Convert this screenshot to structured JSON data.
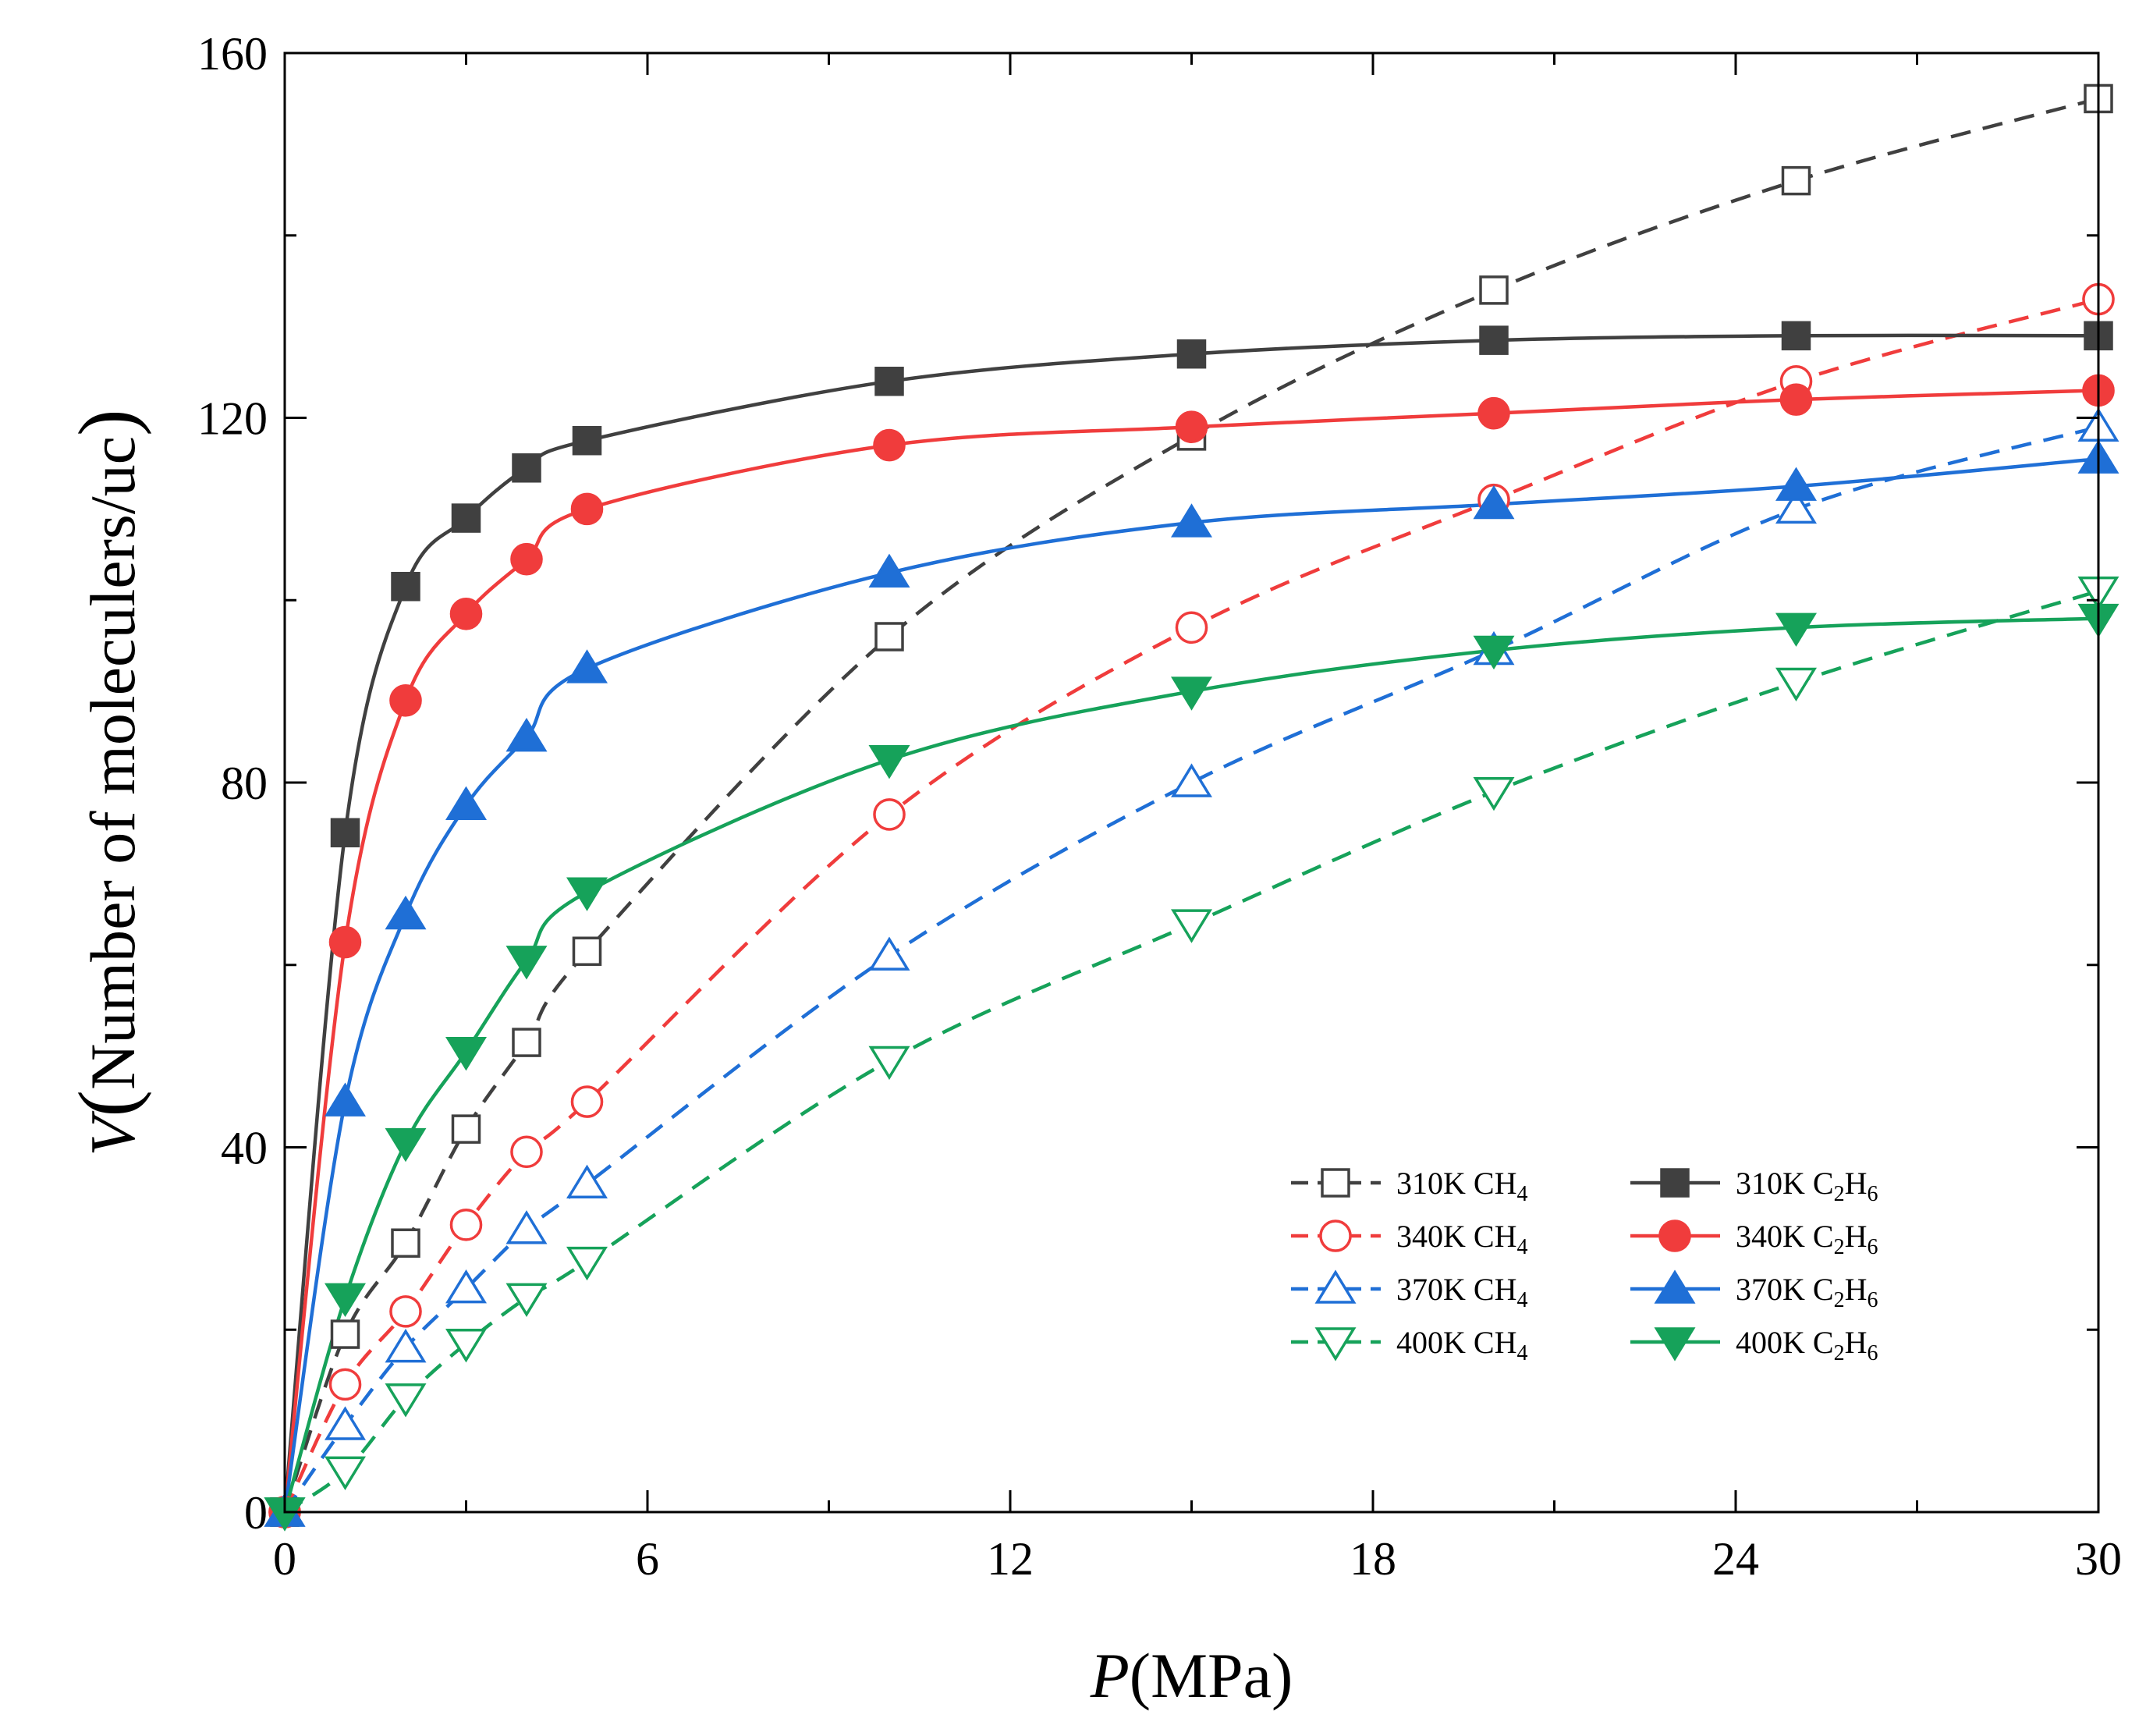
{
  "chart_data": {
    "type": "line",
    "title": "",
    "xlabel_italic": "P",
    "xlabel_rest": "(MPa)",
    "ylabel_italic": "V",
    "ylabel_paren": "(",
    "ylabel_rest": "Number of moleculers/uc",
    "ylabel_close": ")",
    "xlim": [
      0,
      30
    ],
    "ylim": [
      0,
      160
    ],
    "xticks": [
      0,
      6,
      12,
      18,
      24,
      30
    ],
    "yticks": [
      0,
      40,
      80,
      120,
      160
    ],
    "xtick_labels": [
      "0",
      "6",
      "12",
      "18",
      "24",
      "30"
    ],
    "ytick_labels": [
      "0",
      "40",
      "80",
      "120",
      "160"
    ],
    "x": [
      0,
      1,
      2,
      3,
      4,
      5,
      10,
      15,
      20,
      25,
      30
    ],
    "legend_position": "lower-right",
    "series": [
      {
        "name": "310K CH4",
        "label": "310K CH",
        "sub": "4",
        "color": "#404040",
        "marker": "square",
        "filled": false,
        "dashed": true,
        "values": [
          0,
          19.5,
          29.5,
          42,
          51.5,
          61.5,
          96,
          118,
          134,
          146,
          155
        ]
      },
      {
        "name": "340K CH4",
        "label": "340K CH",
        "sub": "4",
        "color": "#f03c3c",
        "marker": "circle",
        "filled": false,
        "dashed": true,
        "values": [
          0,
          14,
          22,
          31.5,
          39.5,
          45,
          76.5,
          97,
          111,
          124,
          133
        ]
      },
      {
        "name": "370K CH4",
        "label": "370K CH",
        "sub": "4",
        "color": "#1f6fd6",
        "marker": "triangle-up",
        "filled": false,
        "dashed": true,
        "values": [
          0,
          9.5,
          18,
          24.5,
          31,
          36,
          61,
          80,
          94.5,
          110,
          119
        ]
      },
      {
        "name": "400K CH4",
        "label": "400K CH",
        "sub": "4",
        "color": "#16a25a",
        "marker": "triangle-down",
        "filled": false,
        "dashed": true,
        "values": [
          0,
          4.5,
          12.5,
          18.5,
          23.5,
          27.5,
          49.5,
          64.5,
          79,
          91,
          101
        ]
      },
      {
        "name": "310K C2H6",
        "label": "310K C",
        "sub": "2",
        "label_mid": "H",
        "sub2": "6",
        "color": "#404040",
        "marker": "square",
        "filled": true,
        "dashed": false,
        "values": [
          0,
          74.5,
          101.5,
          109,
          114.5,
          117.5,
          124,
          127,
          128.5,
          129,
          129
        ]
      },
      {
        "name": "340K C2H6",
        "label": "340K C",
        "sub": "2",
        "label_mid": "H",
        "sub2": "6",
        "color": "#f03c3c",
        "marker": "circle",
        "filled": true,
        "dashed": false,
        "values": [
          0,
          62.5,
          89,
          98.5,
          104.5,
          110,
          117,
          119,
          120.5,
          122,
          123
        ]
      },
      {
        "name": "370K C2H6",
        "label": "370K C",
        "sub": "2",
        "label_mid": "H",
        "sub2": "6",
        "color": "#1f6fd6",
        "marker": "triangle-up",
        "filled": true,
        "dashed": false,
        "values": [
          0,
          45,
          65.5,
          77.5,
          85,
          92.5,
          103,
          108.5,
          110.5,
          112.5,
          115.5
        ]
      },
      {
        "name": "400K C2H6",
        "label": "400K C",
        "sub": "2",
        "label_mid": "H",
        "sub2": "6",
        "color": "#16a25a",
        "marker": "triangle-down",
        "filled": true,
        "dashed": false,
        "values": [
          0,
          23.5,
          40.5,
          50.5,
          60.5,
          68,
          82.5,
          90,
          94.5,
          97,
          98
        ]
      }
    ]
  }
}
